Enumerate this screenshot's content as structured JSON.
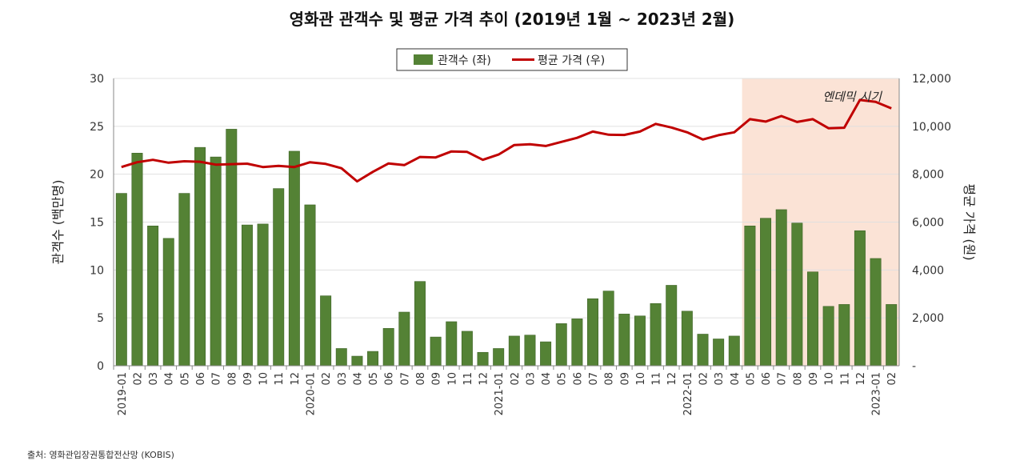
{
  "title": "영화관 관객수 및 평균 가격 추이 (2019년 1월 ~ 2023년 2월)",
  "source": "출처: 영화관입장권통합전산망 (KOBIS)",
  "colors": {
    "bar": "#548235",
    "bar_stroke": "#3d6326",
    "line": "#c00000",
    "shade": "#fbe3d6",
    "grid": "#e0e0e0"
  },
  "chart_data": {
    "type": "bar+line",
    "x_labels": [
      "2019-01",
      "02",
      "03",
      "04",
      "05",
      "06",
      "07",
      "08",
      "09",
      "10",
      "11",
      "12",
      "2020-01",
      "02",
      "03",
      "04",
      "05",
      "06",
      "07",
      "08",
      "09",
      "10",
      "11",
      "12",
      "2021-01",
      "02",
      "03",
      "04",
      "05",
      "06",
      "07",
      "08",
      "09",
      "10",
      "11",
      "12",
      "2022-01",
      "02",
      "03",
      "04",
      "05",
      "06",
      "07",
      "08",
      "09",
      "10",
      "11",
      "12",
      "2023-01",
      "02"
    ],
    "series": [
      {
        "name": "관객수 (좌)",
        "type": "bar",
        "axis": "left",
        "values": [
          18.0,
          22.2,
          14.6,
          13.3,
          18.0,
          22.8,
          21.8,
          24.7,
          14.7,
          14.8,
          18.5,
          22.4,
          16.8,
          7.3,
          1.8,
          1.0,
          1.5,
          3.9,
          5.6,
          8.8,
          3.0,
          4.6,
          3.6,
          1.4,
          1.8,
          3.1,
          3.2,
          2.5,
          4.4,
          4.9,
          7.0,
          7.8,
          5.4,
          5.2,
          6.5,
          8.4,
          5.7,
          3.3,
          2.8,
          3.1,
          14.6,
          15.4,
          16.3,
          14.9,
          9.8,
          6.2,
          6.4,
          14.1,
          11.2,
          6.4
        ]
      },
      {
        "name": "평균 가격 (우)",
        "type": "line",
        "axis": "right",
        "values": [
          8300,
          8500,
          8600,
          8480,
          8540,
          8520,
          8400,
          8420,
          8440,
          8300,
          8350,
          8300,
          8500,
          8430,
          8250,
          7700,
          8100,
          8450,
          8380,
          8720,
          8700,
          8950,
          8930,
          8600,
          8820,
          9220,
          9250,
          9180,
          9350,
          9520,
          9780,
          9650,
          9640,
          9780,
          10100,
          9950,
          9750,
          9450,
          9630,
          9750,
          10300,
          10200,
          10430,
          10180,
          10300,
          9920,
          9940,
          11100,
          11020,
          10750
        ]
      }
    ],
    "y_left": {
      "label": "관객수 (백만명)",
      "min": 0,
      "max": 30,
      "ticks": [
        "0",
        "5",
        "10",
        "15",
        "20",
        "25",
        "30"
      ]
    },
    "y_right": {
      "label": "평균 가격 (원)",
      "min": 0,
      "max": 12000,
      "ticks": [
        "-",
        "2,000",
        "4,000",
        "6,000",
        "8,000",
        "10,000",
        "12,000"
      ]
    },
    "shaded_region": {
      "from_index": 40,
      "to_index": 49,
      "label": "엔데믹 시기"
    },
    "grid": true,
    "legend_position": "top-center"
  }
}
